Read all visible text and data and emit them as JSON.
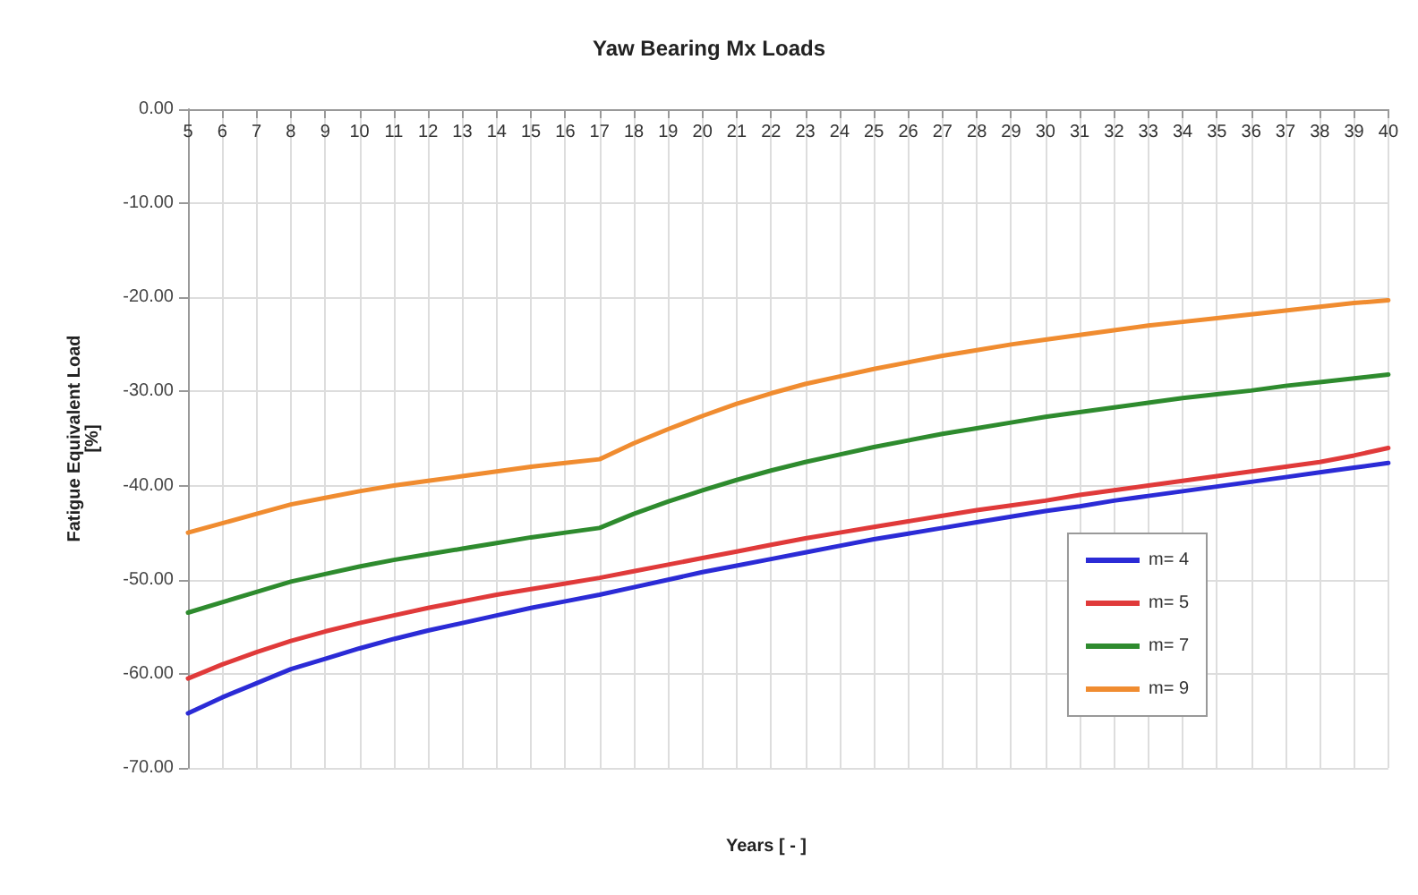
{
  "chart_data": {
    "type": "line",
    "title": "Yaw Bearing Mx Loads",
    "xlabel": "Years [ - ]",
    "ylabel": "Fatigue Equivalent Load\n[%]",
    "categories": [
      "5",
      "6",
      "7",
      "8",
      "9",
      "10",
      "11",
      "12",
      "13",
      "14",
      "15",
      "16",
      "17",
      "18",
      "19",
      "20",
      "21",
      "22",
      "23",
      "24",
      "25",
      "26",
      "27",
      "28",
      "29",
      "30",
      "31",
      "32",
      "33",
      "34",
      "35",
      "36",
      "37",
      "38",
      "39",
      "40"
    ],
    "series": [
      {
        "name": "m= 4",
        "color": "#2b2bd6",
        "values": [
          -64.2,
          -62.5,
          -61,
          -59.5,
          -58.4,
          -57.3,
          -56.3,
          -55.4,
          -54.6,
          -53.8,
          -53,
          -52.3,
          -51.6,
          -50.8,
          -50,
          -49.2,
          -48.5,
          -47.8,
          -47.1,
          -46.4,
          -45.7,
          -45.1,
          -44.5,
          -43.9,
          -43.3,
          -42.7,
          -42.2,
          -41.6,
          -41.1,
          -40.6,
          -40.1,
          -39.6,
          -39.1,
          -38.6,
          -38.1,
          -37.6
        ]
      },
      {
        "name": "m= 5",
        "color": "#e03a3a",
        "values": [
          -60.5,
          -59,
          -57.7,
          -56.5,
          -55.5,
          -54.6,
          -53.8,
          -53,
          -52.3,
          -51.6,
          -51,
          -50.4,
          -49.8,
          -49.1,
          -48.4,
          -47.7,
          -47,
          -46.3,
          -45.6,
          -45,
          -44.4,
          -43.8,
          -43.2,
          -42.6,
          -42.1,
          -41.6,
          -41,
          -40.5,
          -40,
          -39.5,
          -39,
          -38.5,
          -38,
          -37.5,
          -36.8,
          -36
        ]
      },
      {
        "name": "m= 7",
        "color": "#2e8b2e",
        "values": [
          -53.5,
          -52.4,
          -51.3,
          -50.2,
          -49.4,
          -48.6,
          -47.9,
          -47.3,
          -46.7,
          -46.1,
          -45.5,
          -45,
          -44.5,
          -43,
          -41.7,
          -40.5,
          -39.4,
          -38.4,
          -37.5,
          -36.7,
          -35.9,
          -35.2,
          -34.5,
          -33.9,
          -33.3,
          -32.7,
          -32.2,
          -31.7,
          -31.2,
          -30.7,
          -30.3,
          -29.9,
          -29.4,
          -29,
          -28.6,
          -28.2
        ]
      },
      {
        "name": "m= 9",
        "color": "#f08c30",
        "values": [
          -45,
          -44,
          -43,
          -42,
          -41.3,
          -40.6,
          -40,
          -39.5,
          -39,
          -38.5,
          -38,
          -37.6,
          -37.2,
          -35.5,
          -34,
          -32.6,
          -31.3,
          -30.2,
          -29.2,
          -28.4,
          -27.6,
          -26.9,
          -26.2,
          -25.6,
          -25,
          -24.5,
          -24,
          -23.5,
          -23,
          -22.6,
          -22.2,
          -21.8,
          -21.4,
          -21,
          -20.6,
          -20.3
        ]
      }
    ],
    "ylim": [
      -70,
      0
    ],
    "yticks": [
      {
        "value": 0,
        "label": "0.00"
      },
      {
        "value": -10,
        "label": "-10.00"
      },
      {
        "value": -20,
        "label": "-20.00"
      },
      {
        "value": -30,
        "label": "-30.00"
      },
      {
        "value": -40,
        "label": "-40.00"
      },
      {
        "value": -50,
        "label": "-50.00"
      },
      {
        "value": -60,
        "label": "-60.00"
      },
      {
        "value": -70,
        "label": "-70.00"
      }
    ],
    "grid": true,
    "legend": "right",
    "marker": "none",
    "line_style": "solid"
  }
}
